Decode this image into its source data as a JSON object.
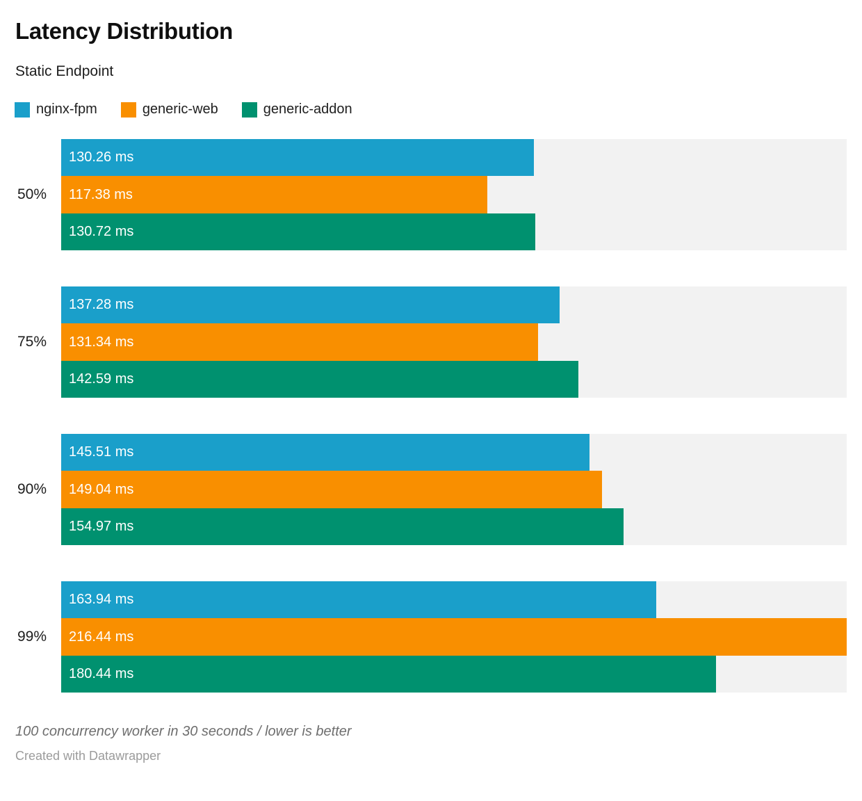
{
  "header": {
    "title": "Latency Distribution",
    "subtitle": "Static Endpoint"
  },
  "legend": [
    {
      "label": "nginx-fpm",
      "color": "#1a9fca"
    },
    {
      "label": "generic-web",
      "color": "#f98f00"
    },
    {
      "label": "generic-addon",
      "color": "#00916f"
    }
  ],
  "chart_data": {
    "type": "bar",
    "orientation": "horizontal",
    "title": "Latency Distribution",
    "subtitle": "Static Endpoint",
    "unit": "ms",
    "value_axis_max": 216.44,
    "grid": false,
    "legend_position": "top",
    "track_color": "#f2f2f2",
    "categories": [
      "50%",
      "75%",
      "90%",
      "99%"
    ],
    "series": [
      {
        "name": "nginx-fpm",
        "color": "#1a9fca",
        "values": [
          130.26,
          137.28,
          145.51,
          163.94
        ],
        "labels": [
          "130.26 ms",
          "137.28 ms",
          "145.51 ms",
          "163.94 ms"
        ]
      },
      {
        "name": "generic-web",
        "color": "#f98f00",
        "values": [
          117.38,
          131.34,
          149.04,
          216.44
        ],
        "labels": [
          "117.38 ms",
          "131.34 ms",
          "149.04 ms",
          "216.44 ms"
        ]
      },
      {
        "name": "generic-addon",
        "color": "#00916f",
        "values": [
          130.72,
          142.59,
          154.97,
          180.44
        ],
        "labels": [
          "130.72 ms",
          "142.59 ms",
          "154.97 ms",
          "180.44 ms"
        ]
      }
    ]
  },
  "footer": {
    "note": "100 concurrency worker in 30 seconds / lower is better",
    "attribution": "Created with Datawrapper"
  }
}
